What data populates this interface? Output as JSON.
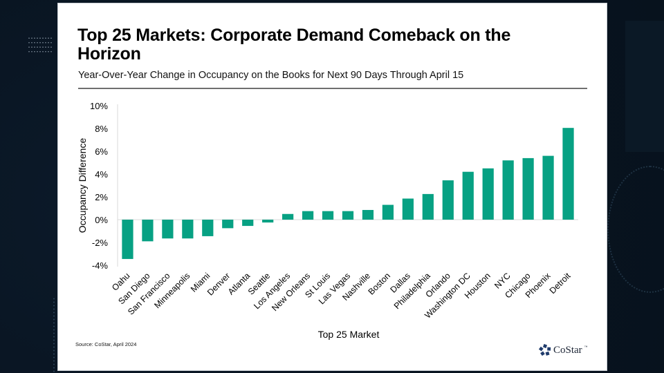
{
  "slide": {
    "title": "Top 25 Markets: Corporate Demand Comeback on the Horizon",
    "subtitle": "Year-Over-Year Change in Occupancy on the Books for Next 90 Days Through April 15",
    "source": "Source: CoStar, April 2024",
    "logo_text": "CoStar",
    "logo_tm": "™",
    "bar_color": "#07a183",
    "logo_color": "#1f3b6b"
  },
  "chart_data": {
    "type": "bar",
    "title": "Top 25 Markets: Corporate Demand Comeback on the Horizon",
    "subtitle": "Year-Over-Year Change in Occupancy on the Books for Next 90 Days Through April 15",
    "xlabel": "Top 25 Market",
    "ylabel": "Occupancy Difference",
    "ylim": [
      -4,
      10
    ],
    "yticks": [
      -4,
      -2,
      0,
      2,
      4,
      6,
      8,
      10
    ],
    "ytick_labels": [
      "-4%",
      "-2%",
      "0%",
      "2%",
      "4%",
      "6%",
      "8%",
      "10%"
    ],
    "grid": false,
    "legend": "none",
    "categories": [
      "Oahu",
      "San Diego",
      "San Francisco",
      "Minneapolis",
      "Miami",
      "Denver",
      "Atlanta",
      "Seattle",
      "Los Angeles",
      "New Orleans",
      "St Louis",
      "Las Vegas",
      "Nashville",
      "Boston",
      "Dallas",
      "Philadelphia",
      "Orlando",
      "Washington DC",
      "Houston",
      "NYC",
      "Chicago",
      "Phoenix",
      "Detroit"
    ],
    "values": [
      -3.45,
      -1.9,
      -1.65,
      -1.65,
      -1.45,
      -0.75,
      -0.55,
      -0.25,
      0.5,
      0.75,
      0.75,
      0.75,
      0.85,
      1.3,
      1.85,
      2.25,
      3.45,
      4.2,
      4.5,
      5.2,
      5.4,
      5.6,
      8.05
    ],
    "unit": "%"
  }
}
